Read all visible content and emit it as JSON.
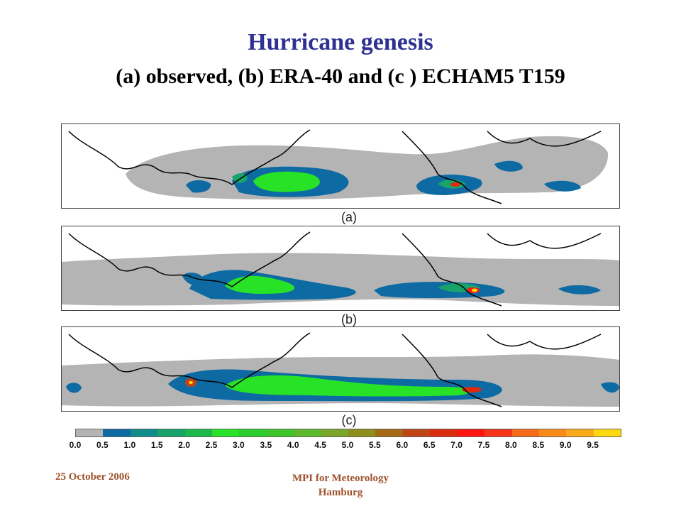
{
  "slide": {
    "title": "Hurricane genesis",
    "subtitle": "(a) observed, (b) ERA-40 and (c ) ECHAM5 T159"
  },
  "panels": [
    {
      "label": "(a)"
    },
    {
      "label": "(b)"
    },
    {
      "label": "(c)"
    }
  ],
  "colorbar": {
    "ticks": [
      "0.0",
      "0.5",
      "1.0",
      "1.5",
      "2.0",
      "2.5",
      "3.0",
      "3.5",
      "4.0",
      "4.5",
      "5.0",
      "5.5",
      "6.0",
      "6.5",
      "7.0",
      "7.5",
      "8.0",
      "8.5",
      "9.0",
      "9.5"
    ],
    "colors": [
      "#b4b4b4",
      "#0e6aa3",
      "#108c8c",
      "#17a36a",
      "#1cb84c",
      "#27e227",
      "#2ccd2c",
      "#3fc42a",
      "#5db82a",
      "#7aa62a",
      "#8e8e1c",
      "#a66a16",
      "#c04414",
      "#dc2c10",
      "#ff1414",
      "#f5341a",
      "#f76a1a",
      "#f98a1a",
      "#fbaa1a",
      "#ffd80e"
    ]
  },
  "footer": {
    "date": "25 October 2006",
    "institute_line1": "MPI for Meteorology",
    "institute_line2": "Hamburg"
  }
}
